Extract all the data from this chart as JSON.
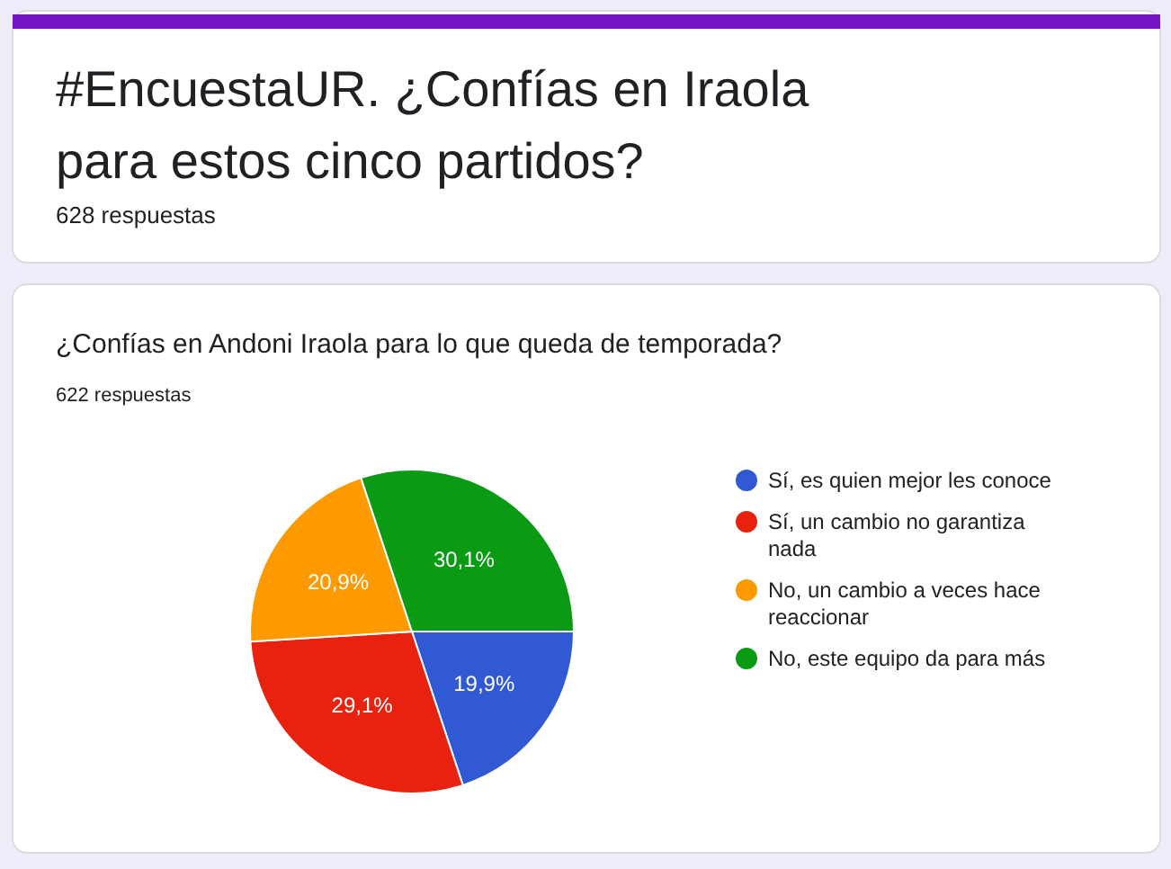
{
  "chart_data": {
    "type": "pie",
    "title": "#EncuestaUR. ¿Confías en Iraola para estos cinco partidos?",
    "subtitle": "¿Confías en Andoni Iraola para lo que queda de temporada?",
    "annotations": [
      "628 respuestas",
      "622 respuestas"
    ],
    "categories": [
      "Sí, es quien mejor les conoce",
      "Sí, un cambio no garantiza nada",
      "No, un cambio a veces hace reaccionar",
      "No, este equipo da para más"
    ],
    "values": [
      19.9,
      29.1,
      20.9,
      30.1
    ],
    "colors": [
      "#3059d3",
      "#e8220f",
      "#fd9a00",
      "#0a9a14"
    ],
    "value_labels": [
      "19,9%",
      "29,1%",
      "20,9%",
      "30,1%"
    ],
    "legend": "right"
  }
}
